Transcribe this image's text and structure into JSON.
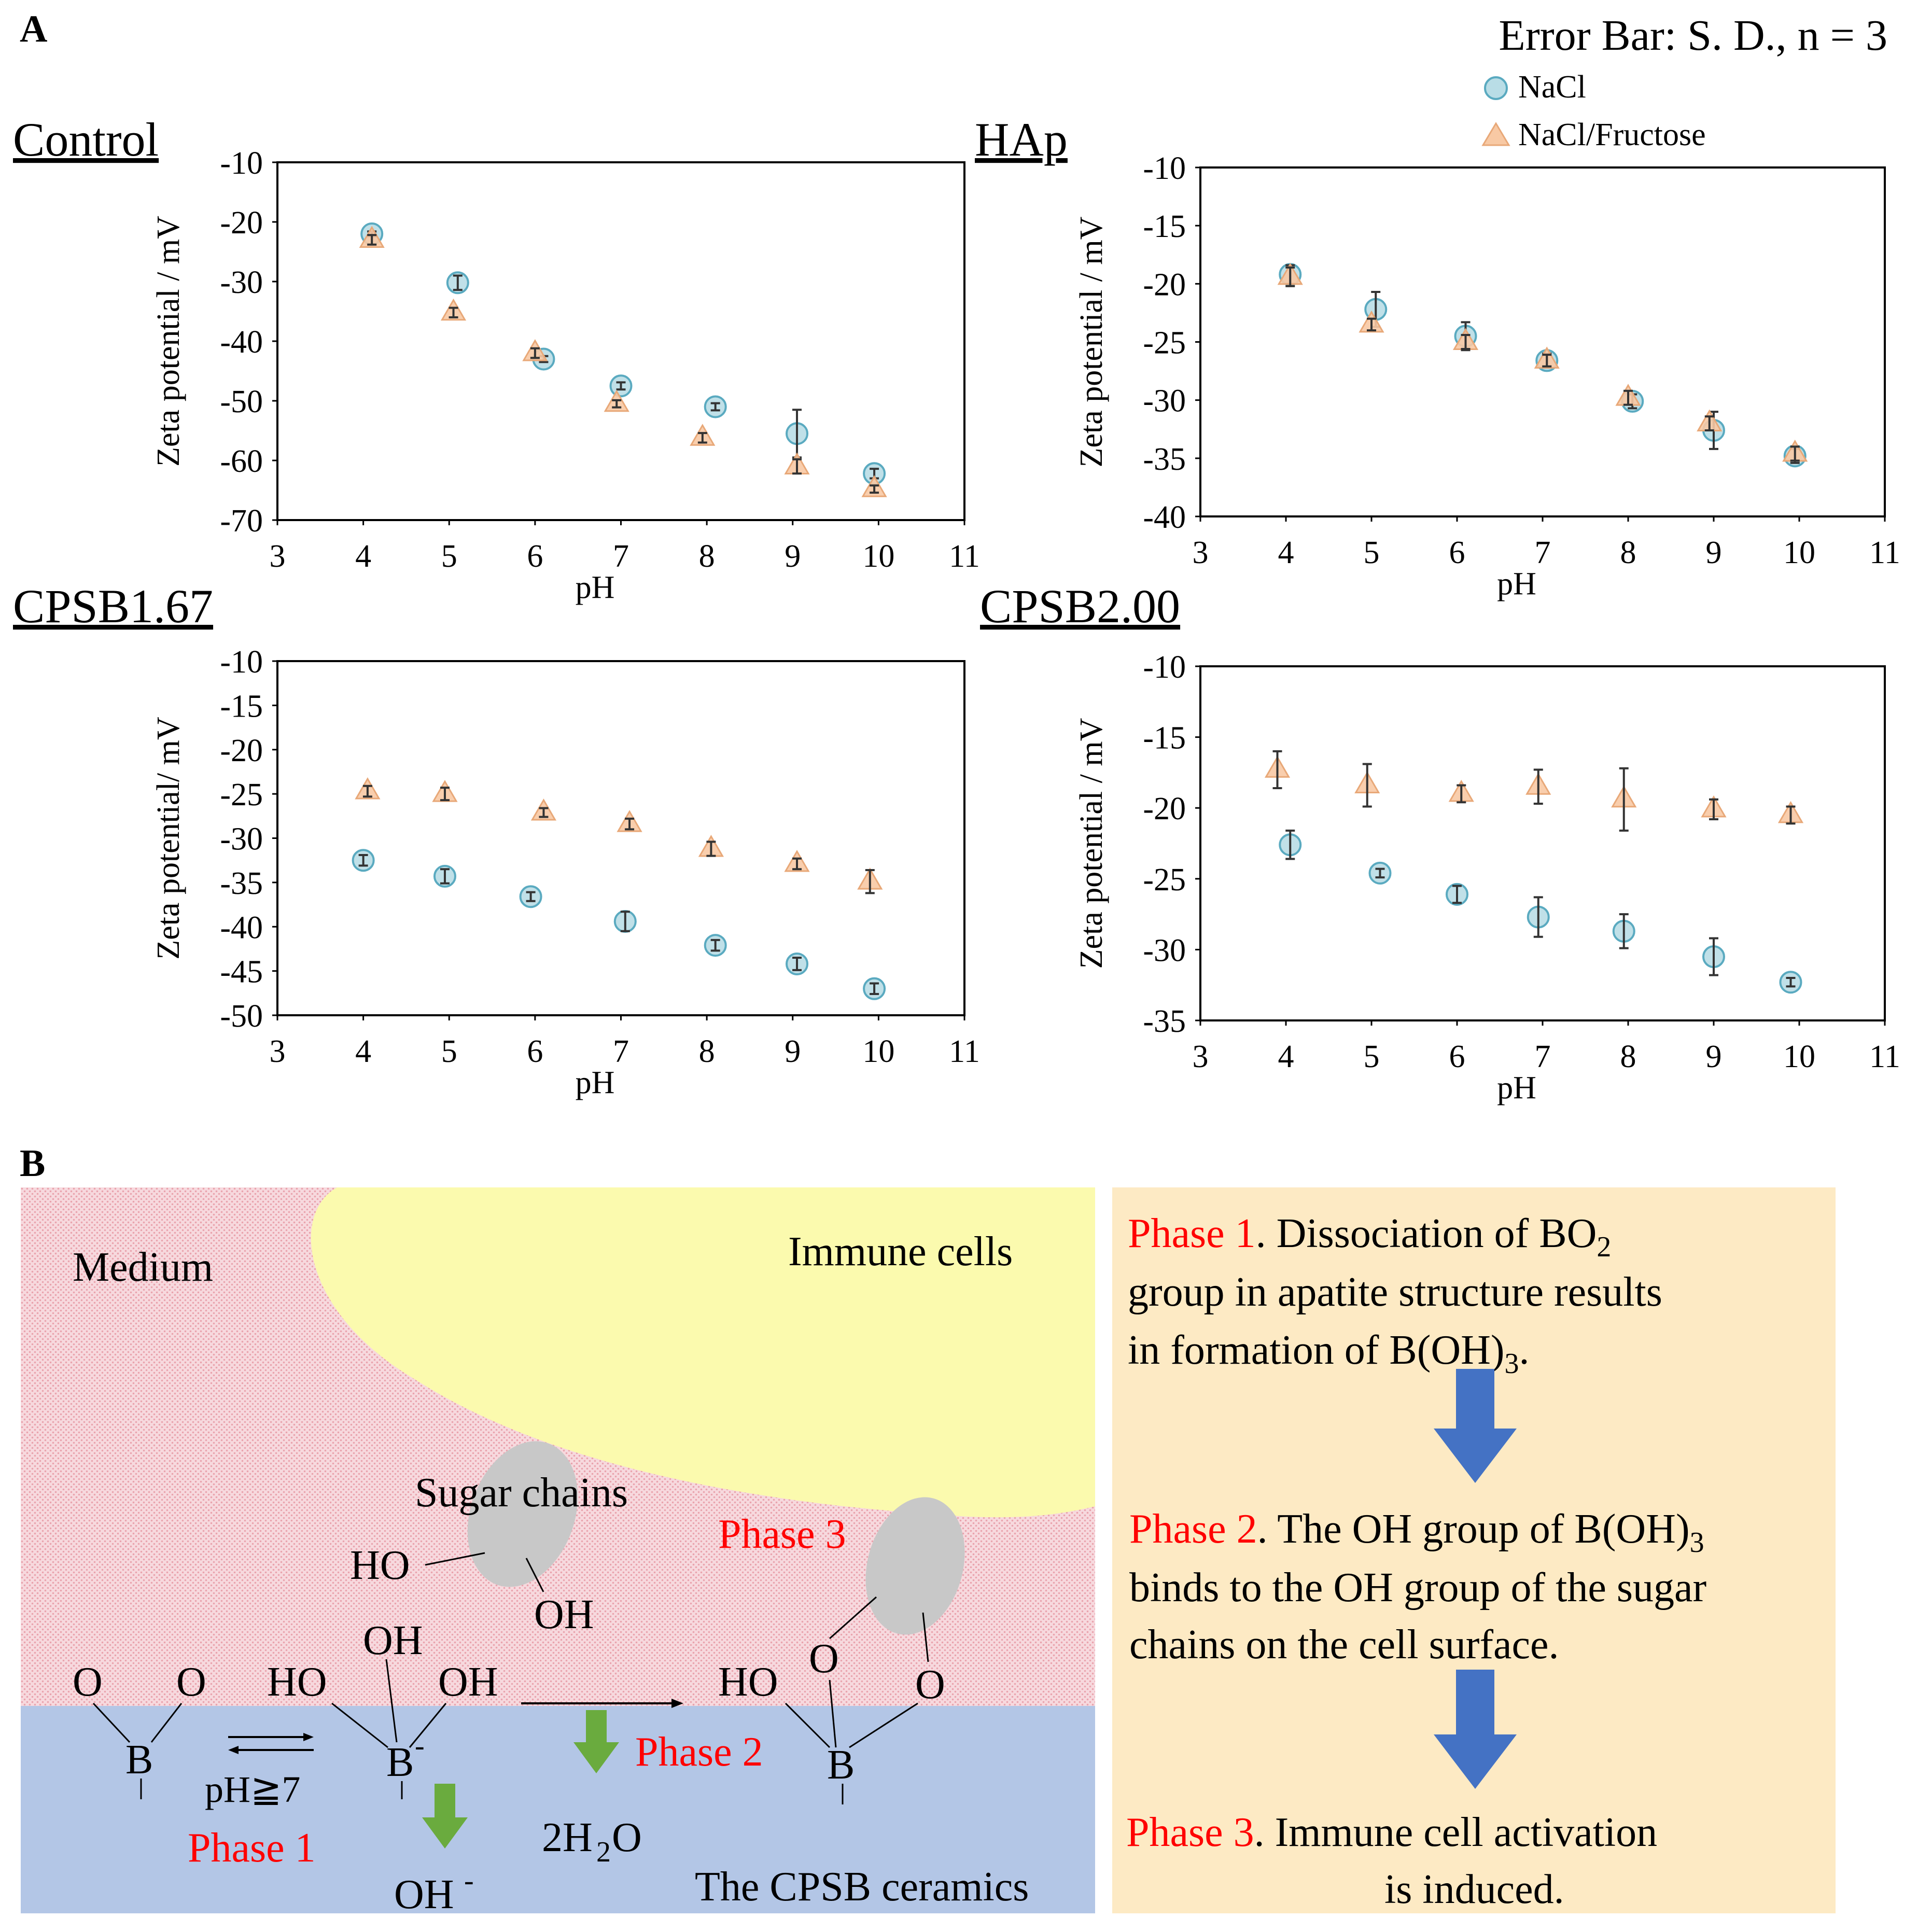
{
  "panel_a": {
    "letter": "A",
    "error_note": "Error Bar: S. D., n = 3",
    "legend": {
      "nacl": "NaCl",
      "fructose": "NaCl/Fructose"
    },
    "colors": {
      "nacl_fill": "#b9dde6",
      "nacl_stroke": "#5aaac0",
      "fructose_fill": "#f8c9a4",
      "fructose_stroke": "#e8a878",
      "errbar": "#333333"
    }
  },
  "chart_data": [
    {
      "type": "scatter",
      "title": "Control",
      "xlabel": "pH",
      "ylabel": "Zeta potential / mV",
      "xlim": [
        3,
        11
      ],
      "ylim": [
        -70,
        -10
      ],
      "xticks": [
        "3",
        "4",
        "5",
        "6",
        "7",
        "8",
        "9",
        "10",
        "11"
      ],
      "yticks": [
        "-10",
        "-20",
        "-30",
        "-40",
        "-50",
        "-60",
        "-70"
      ],
      "series": [
        {
          "name": "NaCl",
          "x": [
            4.1,
            5.1,
            6.1,
            7.0,
            8.1,
            9.05,
            9.95
          ],
          "y": [
            -22,
            -30.2,
            -43,
            -47.5,
            -51,
            -55.5,
            -62.2
          ],
          "err": [
            0.4,
            1.2,
            0.5,
            0.6,
            0.6,
            4.0,
            0.8
          ]
        },
        {
          "name": "NaCl/Fructose",
          "x": [
            4.1,
            5.05,
            6.0,
            6.95,
            7.95,
            9.05,
            9.95
          ],
          "y": [
            -23,
            -35.2,
            -42,
            -50.5,
            -56.2,
            -61,
            -64.8
          ],
          "err": [
            0.8,
            0.8,
            0.8,
            0.6,
            0.8,
            1.2,
            0.6
          ]
        }
      ]
    },
    {
      "type": "scatter",
      "title": "HAp",
      "xlabel": "pH",
      "ylabel": "Zeta potential / mV",
      "xlim": [
        3,
        11
      ],
      "ylim": [
        -40,
        -10
      ],
      "xticks": [
        "3",
        "4",
        "5",
        "6",
        "7",
        "8",
        "9",
        "10",
        "11"
      ],
      "yticks": [
        "-10",
        "-15",
        "-20",
        "-25",
        "-30",
        "-35",
        "-40"
      ],
      "series": [
        {
          "name": "NaCl",
          "x": [
            4.05,
            5.05,
            6.1,
            7.05,
            8.05,
            9.0,
            9.95
          ],
          "y": [
            -19.2,
            -22.2,
            -24.5,
            -26.6,
            -30.1,
            -32.6,
            -34.8
          ],
          "err": [
            0.8,
            1.5,
            1.2,
            0.6,
            0.6,
            1.6,
            0.6
          ]
        },
        {
          "name": "NaCl/Fructose",
          "x": [
            4.05,
            5.0,
            6.1,
            7.05,
            8.0,
            8.95,
            9.95
          ],
          "y": [
            -19.4,
            -23.5,
            -25.0,
            -26.6,
            -29.8,
            -32.0,
            -34.6
          ],
          "err": [
            0.8,
            0.5,
            0.6,
            0.5,
            0.6,
            0.6,
            0.6
          ]
        }
      ]
    },
    {
      "type": "scatter",
      "title": "CPSB1.67",
      "xlabel": "pH",
      "ylabel": "Zeta potential/ mV",
      "xlim": [
        3,
        11
      ],
      "ylim": [
        -50,
        -10
      ],
      "xticks": [
        "3",
        "4",
        "5",
        "6",
        "7",
        "8",
        "9",
        "10",
        "11"
      ],
      "yticks": [
        "-10",
        "-15",
        "-20",
        "-25",
        "-30",
        "-35",
        "-40",
        "-45",
        "-50"
      ],
      "series": [
        {
          "name": "NaCl",
          "x": [
            4.0,
            4.95,
            5.95,
            7.05,
            8.1,
            9.05,
            9.95
          ],
          "y": [
            -32.5,
            -34.3,
            -36.6,
            -39.4,
            -42.1,
            -44.2,
            -47.0
          ],
          "err": [
            0.6,
            0.8,
            0.5,
            1.1,
            0.6,
            0.7,
            0.6
          ]
        },
        {
          "name": "NaCl/Fructose",
          "x": [
            4.05,
            4.95,
            6.1,
            7.1,
            8.05,
            9.05,
            9.9
          ],
          "y": [
            -24.7,
            -25.0,
            -27.1,
            -28.4,
            -31.2,
            -32.9,
            -34.9
          ],
          "err": [
            0.6,
            0.7,
            0.5,
            0.6,
            0.8,
            0.6,
            1.3
          ]
        }
      ]
    },
    {
      "type": "scatter",
      "title": "CPSB2.00",
      "xlabel": "pH",
      "ylabel": "Zeta potential / mV",
      "xlim": [
        3,
        11
      ],
      "ylim": [
        -35,
        -10
      ],
      "xticks": [
        "3",
        "4",
        "5",
        "6",
        "7",
        "8",
        "9",
        "10",
        "11"
      ],
      "yticks": [
        "-10",
        "-15",
        "-20",
        "-25",
        "-30",
        "-35"
      ],
      "series": [
        {
          "name": "NaCl",
          "x": [
            4.05,
            5.1,
            6.0,
            6.95,
            7.95,
            9.0,
            9.9
          ],
          "y": [
            -22.6,
            -24.6,
            -26.1,
            -27.7,
            -28.7,
            -30.5,
            -32.3
          ],
          "err": [
            1.0,
            0.3,
            0.6,
            1.4,
            1.2,
            1.3,
            0.3
          ]
        },
        {
          "name": "NaCl/Fructose",
          "x": [
            3.9,
            4.95,
            6.05,
            6.95,
            7.95,
            9.0,
            9.9
          ],
          "y": [
            -17.3,
            -18.4,
            -19.0,
            -18.5,
            -19.4,
            -20.1,
            -20.5
          ],
          "err": [
            1.3,
            1.5,
            0.6,
            1.2,
            2.2,
            0.7,
            0.6
          ]
        }
      ]
    }
  ],
  "panel_b": {
    "letter": "B",
    "medium": "Medium",
    "immune_cells": "Immune cells",
    "sugar_chains": "Sugar chains",
    "ceramics": "The CPSB ceramics",
    "phase1": "Phase 1",
    "phase2": "Phase 2",
    "phase3": "Phase 3",
    "ph_condition": "pH≧7",
    "atom_o": "O",
    "atom_b": "B",
    "minus": "-",
    "group_ho": "HO",
    "group_oh": "OH",
    "product_2h": "2H",
    "sub_2": "2",
    "product_o": "O",
    "product_oh": "OH",
    "steps": {
      "s1_label": "Phase 1",
      "s1_line1a": ".   Dissociation  of  BO",
      "s1_sub": "2",
      "s1_line2": "group in apatite structure results",
      "s1_line3a": "in formation of B(OH)",
      "s1_sub3": "3",
      "s1_line3b": ".",
      "s2_label": "Phase 2",
      "s2_line1a": ".  The OH group of B(OH)",
      "s2_sub": "3",
      "s2_line2": "binds to the OH group of the sugar",
      "s2_line3": "chains on the cell surface.",
      "s3_label": "Phase 3",
      "s3_line1": ".   Immune cell activation",
      "s3_line2": "is induced."
    },
    "colors": {
      "medium": "#f7d9de",
      "medium_dot": "#e9a3ad",
      "cell": "#fbfaae",
      "ceramic": "#b3c6e6",
      "box": "#fdeac4",
      "phase_red": "#ff0000",
      "arrow_blue": "#4472c4",
      "arrow_green": "#6aab3e",
      "sugar": "#c8c8c8"
    }
  }
}
